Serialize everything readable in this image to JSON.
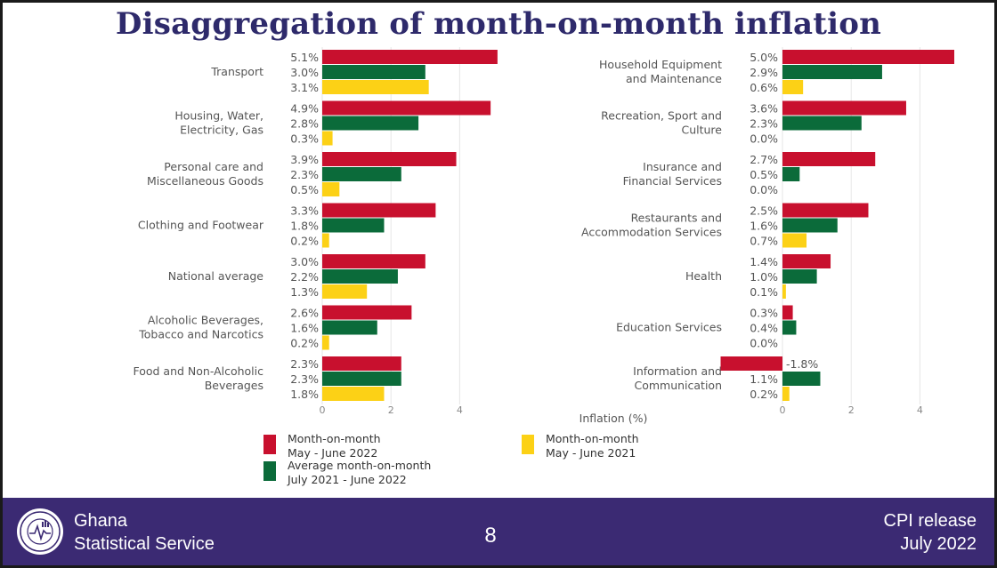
{
  "slide": {
    "title": "Disaggregation of month-on-month inflation",
    "page_number": "8",
    "organization": [
      "Ghana",
      "Statistical Service"
    ],
    "release": [
      "CPI release",
      "July  2022"
    ],
    "logo_text": [
      "STATISTICAL SERVICE",
      "GHANA"
    ]
  },
  "chart_data": {
    "type": "bar",
    "orientation": "horizontal",
    "xlabel": "Inflation (%)",
    "value_suffix": "%",
    "grid": true,
    "legend_placement": "bottom-left",
    "series": [
      {
        "name": "Month-on-month",
        "period": "May - June 2022",
        "color": "#c8102e"
      },
      {
        "name": "Average month-on-month",
        "period": "July 2021 - June 2022",
        "color": "#0b6b3a"
      },
      {
        "name": "Month-on-month",
        "period": "May - June 2021",
        "color": "#fcd116"
      }
    ],
    "panels": [
      {
        "xlim": [
          0,
          5
        ],
        "xticks": [
          "0",
          "2",
          "4"
        ],
        "categories": [
          {
            "label": [
              "Transport"
            ],
            "values": [
              5.1,
              3.0,
              3.1
            ],
            "labels": [
              "5.1%",
              "3.0%",
              "3.1%"
            ]
          },
          {
            "label": [
              "Housing, Water,",
              "Electricity, Gas"
            ],
            "values": [
              4.9,
              2.8,
              0.3
            ],
            "labels": [
              "4.9%",
              "2.8%",
              "0.3%"
            ]
          },
          {
            "label": [
              "Personal care and",
              "Miscellaneous Goods"
            ],
            "values": [
              3.9,
              2.3,
              0.5
            ],
            "labels": [
              "3.9%",
              "2.3%",
              "0.5%"
            ]
          },
          {
            "label": [
              "Clothing and Footwear"
            ],
            "values": [
              3.3,
              1.8,
              0.2
            ],
            "labels": [
              "3.3%",
              "1.8%",
              "0.2%"
            ]
          },
          {
            "label": [
              "National average"
            ],
            "values": [
              3.0,
              2.2,
              1.3
            ],
            "labels": [
              "3.0%",
              "2.2%",
              "1.3%"
            ]
          },
          {
            "label": [
              "Alcoholic Beverages,",
              "Tobacco and Narcotics"
            ],
            "values": [
              2.6,
              1.6,
              0.2
            ],
            "labels": [
              "2.6%",
              "1.6%",
              "0.2%"
            ]
          },
          {
            "label": [
              "Food and Non-Alcoholic",
              "Beverages"
            ],
            "values": [
              2.3,
              2.3,
              1.8
            ],
            "labels": [
              "2.3%",
              "2.3%",
              "1.8%"
            ]
          }
        ]
      },
      {
        "xlim": [
          -1.8,
          5
        ],
        "xticks": [
          "0",
          "2",
          "4"
        ],
        "categories": [
          {
            "label": [
              "Household Equipment",
              "and Maintenance"
            ],
            "values": [
              5.0,
              2.9,
              0.6
            ],
            "labels": [
              "5.0%",
              "2.9%",
              "0.6%"
            ]
          },
          {
            "label": [
              "Recreation, Sport and",
              "Culture"
            ],
            "values": [
              3.6,
              2.3,
              0.0
            ],
            "labels": [
              "3.6%",
              "2.3%",
              "0.0%"
            ]
          },
          {
            "label": [
              "Insurance and",
              "Financial Services"
            ],
            "values": [
              2.7,
              0.5,
              0.0
            ],
            "labels": [
              "2.7%",
              "0.5%",
              "0.0%"
            ]
          },
          {
            "label": [
              "Restaurants and",
              "Accommodation Services"
            ],
            "values": [
              2.5,
              1.6,
              0.7
            ],
            "labels": [
              "2.5%",
              "1.6%",
              "0.7%"
            ]
          },
          {
            "label": [
              "Health"
            ],
            "values": [
              1.4,
              1.0,
              0.1
            ],
            "labels": [
              "1.4%",
              "1.0%",
              "0.1%"
            ]
          },
          {
            "label": [
              "Education Services"
            ],
            "values": [
              0.3,
              0.4,
              0.0
            ],
            "labels": [
              "0.3%",
              "0.4%",
              "0.0%"
            ]
          },
          {
            "label": [
              "Information and",
              "Communication"
            ],
            "values": [
              -1.8,
              1.1,
              0.2
            ],
            "labels": [
              "-1.8%",
              "1.1%",
              "0.2%"
            ]
          }
        ]
      }
    ]
  }
}
